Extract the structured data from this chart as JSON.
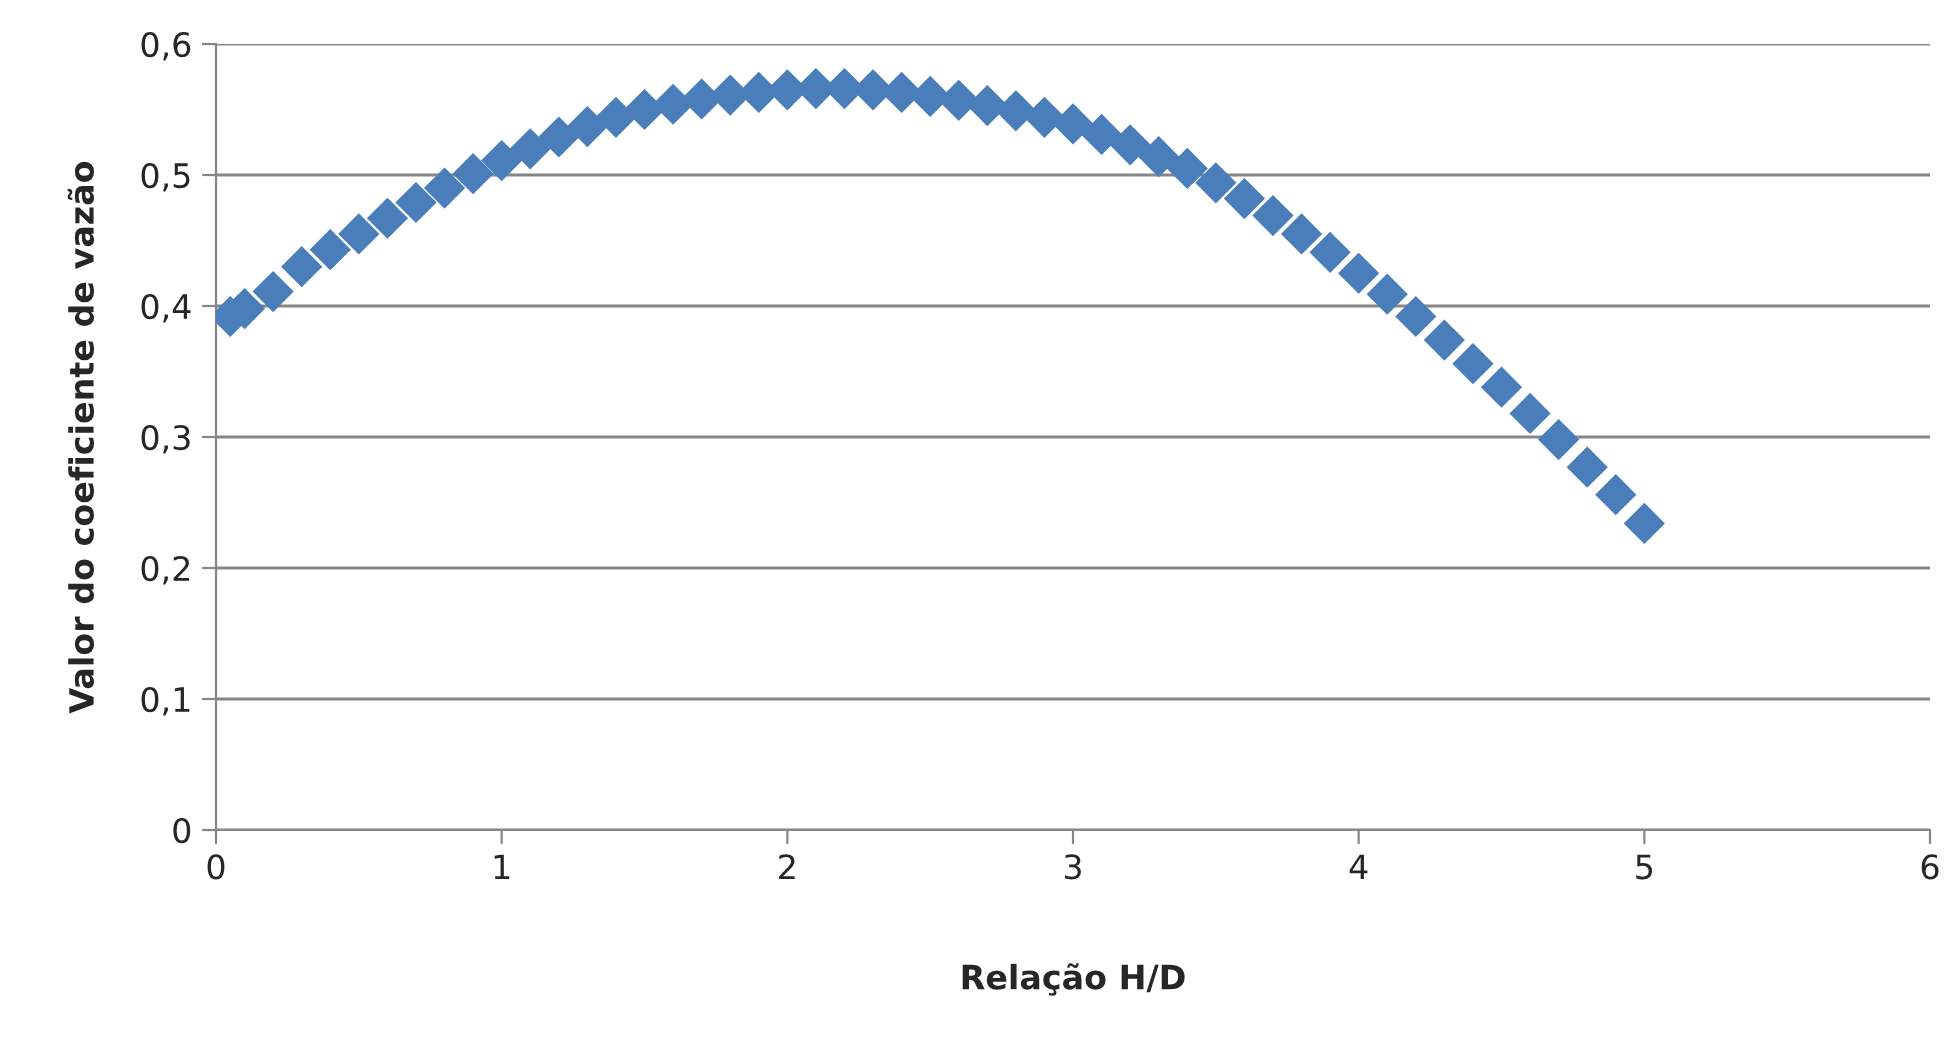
{
  "chart_data": {
    "type": "scatter",
    "xlabel": "Relação H/D",
    "ylabel": "Valor do coeficiente de vazão",
    "xlim": [
      0,
      6
    ],
    "xticks": [
      0,
      1,
      2,
      3,
      4,
      5,
      6
    ],
    "ylim": [
      0,
      0.6
    ],
    "yticks": [
      0,
      {
        "value": 0.1,
        "label": "0,1"
      },
      {
        "value": 0.2,
        "label": "0,2"
      },
      {
        "value": 0.3,
        "label": "0,3"
      },
      {
        "value": 0.4,
        "label": "0,4"
      },
      {
        "value": 0.5,
        "label": "0,5"
      },
      {
        "value": 0.6,
        "label": "0,6"
      }
    ],
    "grid": "y",
    "marker": "diamond",
    "series": [
      {
        "color": "#4a7ebb",
        "x": [
          0.05,
          0.1,
          0.2,
          0.3,
          0.4,
          0.5,
          0.6,
          0.7,
          0.8,
          0.9,
          1.0,
          1.1,
          1.2,
          1.3,
          1.4,
          1.5,
          1.6,
          1.7,
          1.8,
          1.9,
          2.0,
          2.1,
          2.2,
          2.3,
          2.4,
          2.5,
          2.6,
          2.7,
          2.8,
          2.9,
          3.0,
          3.1,
          3.2,
          3.3,
          3.4,
          3.5,
          3.6,
          3.7,
          3.8,
          3.9,
          4.0,
          4.1,
          4.2,
          4.3,
          4.4,
          4.5,
          4.6,
          4.7,
          4.8,
          4.9,
          5.0
        ],
        "values": [
          0.392,
          0.398,
          0.411,
          0.43,
          0.443,
          0.455,
          0.467,
          0.479,
          0.49,
          0.501,
          0.511,
          0.52,
          0.529,
          0.537,
          0.544,
          0.55,
          0.554,
          0.558,
          0.561,
          0.563,
          0.565,
          0.566,
          0.566,
          0.565,
          0.563,
          0.56,
          0.557,
          0.553,
          0.549,
          0.544,
          0.539,
          0.531,
          0.523,
          0.514,
          0.505,
          0.494,
          0.482,
          0.469,
          0.455,
          0.441,
          0.425,
          0.409,
          0.392,
          0.374,
          0.356,
          0.338,
          0.318,
          0.298,
          0.277,
          0.256,
          0.234
        ]
      }
    ]
  }
}
